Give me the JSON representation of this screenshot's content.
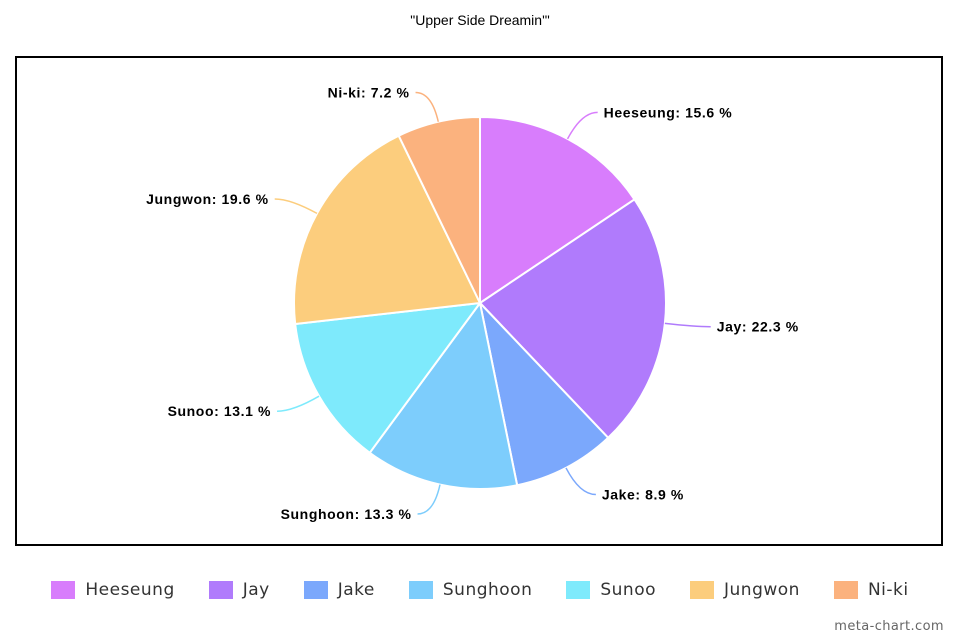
{
  "chart_data": {
    "type": "pie",
    "title": "\"Upper Side Dreamin'\"",
    "label_format": "{name}: {value} %",
    "series": [
      {
        "name": "Heeseung",
        "value": 15.6,
        "color": "#d87dfc"
      },
      {
        "name": "Jay",
        "value": 22.3,
        "color": "#b07bfc"
      },
      {
        "name": "Jake",
        "value": 8.9,
        "color": "#7ba8fc"
      },
      {
        "name": "Sunghoon",
        "value": 13.3,
        "color": "#7dcdfc"
      },
      {
        "name": "Sunoo",
        "value": 13.1,
        "color": "#7eeafc"
      },
      {
        "name": "Jungwon",
        "value": 19.6,
        "color": "#fccd7d"
      },
      {
        "name": "Ni-ki",
        "value": 7.2,
        "color": "#fbb27e"
      }
    ],
    "legend_position": "bottom"
  },
  "watermark": "meta-chart.com"
}
